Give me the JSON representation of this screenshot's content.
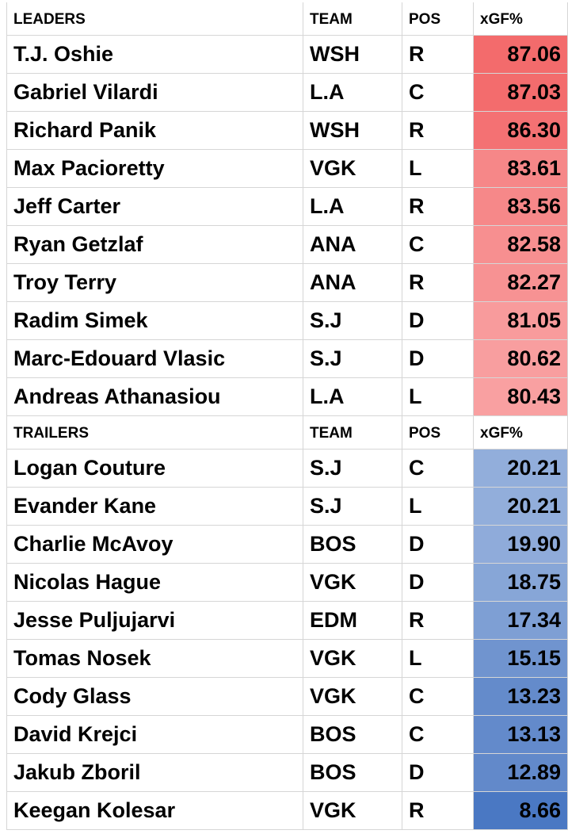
{
  "leaders": {
    "header": [
      "LEADERS",
      "TEAM",
      "POS",
      "xGF%"
    ],
    "rows": [
      [
        "T.J. Oshie",
        "WSH",
        "R",
        "87.06"
      ],
      [
        "Gabriel Vilardi",
        "L.A",
        "C",
        "87.03"
      ],
      [
        "Richard Panik",
        "WSH",
        "R",
        "86.30"
      ],
      [
        "Max Pacioretty",
        "VGK",
        "L",
        "83.61"
      ],
      [
        "Jeff Carter",
        "L.A",
        "R",
        "83.56"
      ],
      [
        "Ryan Getzlaf",
        "ANA",
        "C",
        "82.58"
      ],
      [
        "Troy Terry",
        "ANA",
        "R",
        "82.27"
      ],
      [
        "Radim Simek",
        "S.J",
        "D",
        "81.05"
      ],
      [
        "Marc-Edouard Vlasic",
        "S.J",
        "D",
        "80.62"
      ],
      [
        "Andreas Athanasiou",
        "L.A",
        "L",
        "80.43"
      ]
    ],
    "colors": [
      "#f36b6c",
      "#f36c6d",
      "#f47173",
      "#f68788",
      "#f68889",
      "#f78f90",
      "#f79293",
      "#f89b9c",
      "#f89e9f",
      "#f9a0a1"
    ]
  },
  "trailers": {
    "header": [
      "TRAILERS",
      "TEAM",
      "POS",
      "xGF%"
    ],
    "rows": [
      [
        "Logan Couture",
        "S.J",
        "C",
        "20.21"
      ],
      [
        "Evander Kane",
        "S.J",
        "L",
        "20.21"
      ],
      [
        "Charlie McAvoy",
        "BOS",
        "D",
        "19.90"
      ],
      [
        "Nicolas Hague",
        "VGK",
        "D",
        "18.75"
      ],
      [
        "Jesse Puljujarvi",
        "EDM",
        "R",
        "17.34"
      ],
      [
        "Tomas Nosek",
        "VGK",
        "L",
        "15.15"
      ],
      [
        "Cody Glass",
        "VGK",
        "C",
        "13.23"
      ],
      [
        "David Krejci",
        "BOS",
        "C",
        "13.13"
      ],
      [
        "Jakub Zboril",
        "BOS",
        "D",
        "12.89"
      ],
      [
        "Keegan Kolesar",
        "VGK",
        "R",
        "8.66"
      ]
    ],
    "colors": [
      "#92aedb",
      "#92aedb",
      "#8fabda",
      "#87a6d7",
      "#7e9fd4",
      "#7094cf",
      "#648bcb",
      "#638acb",
      "#6289ca",
      "#4a78c3"
    ]
  }
}
